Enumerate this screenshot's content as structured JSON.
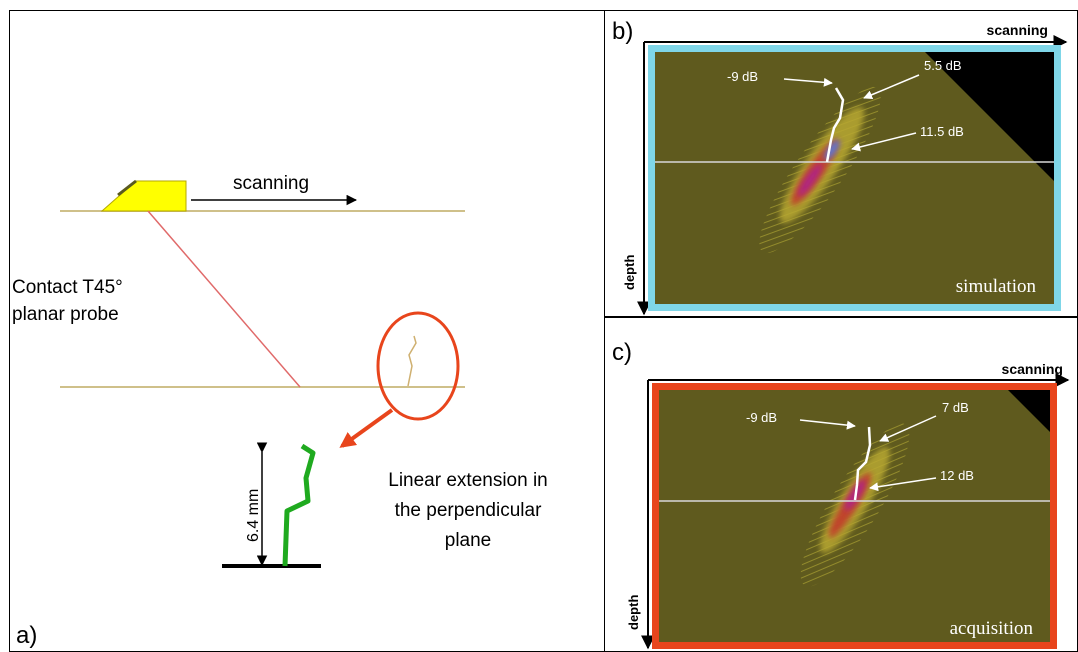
{
  "panel_a": {
    "letter": "a)",
    "scanning_label": "scanning",
    "probe_label_line1": "Contact T45°",
    "probe_label_line2": "planar probe",
    "extension_line1": "Linear extension in",
    "extension_line2": "the perpendicular",
    "extension_line3": "plane",
    "dimension_label": "6.4 mm"
  },
  "panel_b": {
    "letter": "b)",
    "x_axis_label": "scanning",
    "y_axis_label": "depth",
    "image_label": "simulation",
    "annotations": [
      "-9 dB",
      "5.5 dB",
      "11.5 dB"
    ]
  },
  "panel_c": {
    "letter": "c)",
    "x_axis_label": "scanning",
    "y_axis_label": "depth",
    "image_label": "acquisition",
    "annotations": [
      "-9 dB",
      "7 dB",
      "12 dB"
    ]
  },
  "colors": {
    "frame_b": "#7fd6e8",
    "frame_c": "#e8451c",
    "map_background": "#5f5a1e",
    "probe": "#ffff00",
    "surface": "#cfc08a",
    "beam": "#e06a6a",
    "crack": "#1faa1f",
    "zoom_circle": "#e8451c"
  }
}
